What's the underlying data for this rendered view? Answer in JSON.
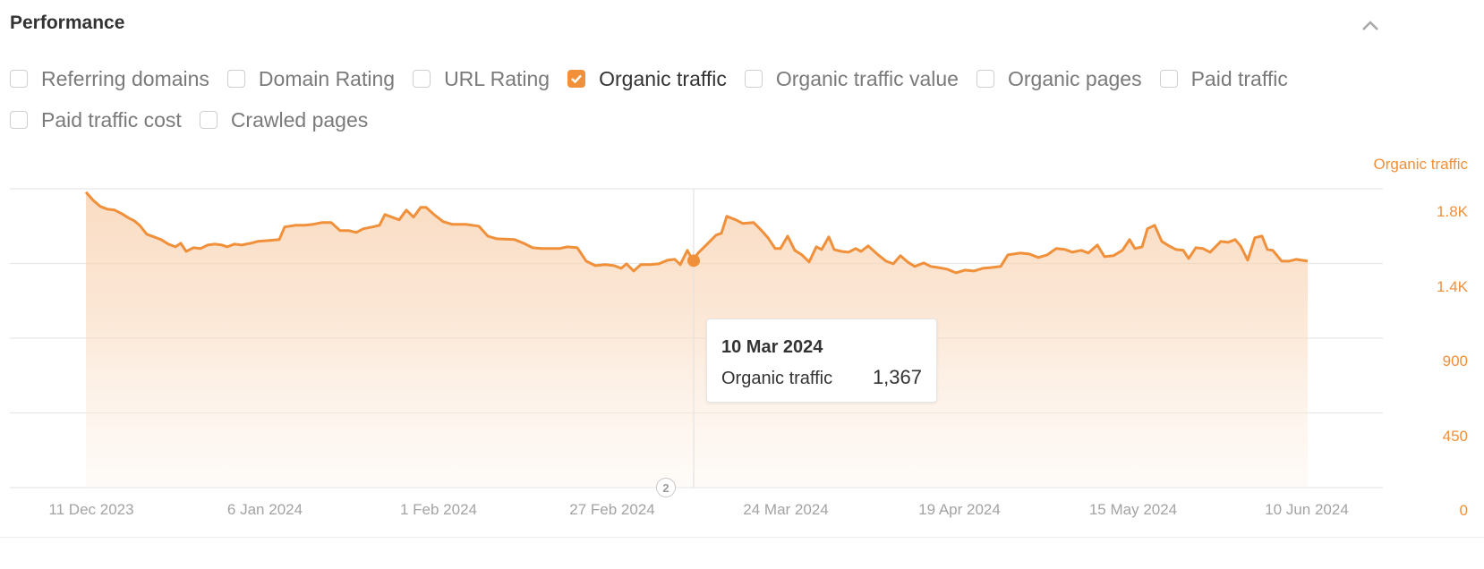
{
  "header": {
    "title": "Performance",
    "collapse_icon": "chevron-up-icon"
  },
  "filters": [
    {
      "label": "Referring domains",
      "checked": false
    },
    {
      "label": "Domain Rating",
      "checked": false
    },
    {
      "label": "URL Rating",
      "checked": false
    },
    {
      "label": "Organic traffic",
      "checked": true
    },
    {
      "label": "Organic traffic value",
      "checked": false
    },
    {
      "label": "Organic pages",
      "checked": false
    },
    {
      "label": "Paid traffic",
      "checked": false
    },
    {
      "label": "Paid traffic cost",
      "checked": false
    },
    {
      "label": "Crawled pages",
      "checked": false
    }
  ],
  "colors": {
    "accent": "#f0903a",
    "grid": "#e8e8e8",
    "axis_text": "#a3a3a3"
  },
  "tooltip": {
    "date": "10 Mar 2024",
    "series": "Organic traffic",
    "value": "1,367"
  },
  "annotation": {
    "label": "2"
  },
  "chart_data": {
    "type": "area",
    "title": "Performance",
    "series_label": "Organic traffic",
    "xlabel": "",
    "ylabel": "Organic traffic",
    "ylim": [
      0,
      1800
    ],
    "yticks": [
      {
        "label": "1.8K",
        "value": 1800
      },
      {
        "label": "1.4K",
        "value": 1350
      },
      {
        "label": "900",
        "value": 900
      },
      {
        "label": "450",
        "value": 450
      },
      {
        "label": "0",
        "value": 0
      }
    ],
    "xticks": [
      "11 Dec 2023",
      "6 Jan 2024",
      "1 Feb 2024",
      "27 Feb 2024",
      "24 Mar 2024",
      "19 Apr 2024",
      "15 May 2024",
      "10 Jun 2024"
    ],
    "grid": true,
    "legend": "none",
    "highlight": {
      "date": "10 Mar 2024",
      "value": 1367
    },
    "series": [
      {
        "name": "Organic traffic",
        "points": [
          [
            96,
            1780
          ],
          [
            104,
            1731
          ],
          [
            112,
            1694
          ],
          [
            120,
            1677
          ],
          [
            128,
            1672
          ],
          [
            136,
            1650
          ],
          [
            144,
            1623
          ],
          [
            150,
            1607
          ],
          [
            156,
            1580
          ],
          [
            164,
            1526
          ],
          [
            172,
            1510
          ],
          [
            180,
            1494
          ],
          [
            188,
            1467
          ],
          [
            196,
            1450
          ],
          [
            202,
            1472
          ],
          [
            208,
            1423
          ],
          [
            216,
            1445
          ],
          [
            224,
            1440
          ],
          [
            232,
            1461
          ],
          [
            240,
            1467
          ],
          [
            248,
            1461
          ],
          [
            254,
            1450
          ],
          [
            262,
            1467
          ],
          [
            270,
            1461
          ],
          [
            280,
            1472
          ],
          [
            288,
            1483
          ],
          [
            300,
            1488
          ],
          [
            312,
            1494
          ],
          [
            318,
            1570
          ],
          [
            330,
            1580
          ],
          [
            340,
            1580
          ],
          [
            350,
            1586
          ],
          [
            360,
            1597
          ],
          [
            370,
            1597
          ],
          [
            380,
            1548
          ],
          [
            390,
            1548
          ],
          [
            398,
            1537
          ],
          [
            406,
            1559
          ],
          [
            416,
            1570
          ],
          [
            424,
            1580
          ],
          [
            430,
            1645
          ],
          [
            446,
            1613
          ],
          [
            454,
            1672
          ],
          [
            462,
            1629
          ],
          [
            470,
            1688
          ],
          [
            476,
            1688
          ],
          [
            486,
            1640
          ],
          [
            495,
            1602
          ],
          [
            505,
            1586
          ],
          [
            520,
            1586
          ],
          [
            535,
            1575
          ],
          [
            545,
            1515
          ],
          [
            555,
            1499
          ],
          [
            575,
            1494
          ],
          [
            585,
            1472
          ],
          [
            595,
            1445
          ],
          [
            605,
            1440
          ],
          [
            625,
            1440
          ],
          [
            634,
            1450
          ],
          [
            645,
            1445
          ],
          [
            655,
            1364
          ],
          [
            665,
            1337
          ],
          [
            676,
            1343
          ],
          [
            686,
            1337
          ],
          [
            694,
            1321
          ],
          [
            700,
            1348
          ],
          [
            708,
            1305
          ],
          [
            716,
            1343
          ],
          [
            726,
            1343
          ],
          [
            736,
            1348
          ],
          [
            746,
            1370
          ],
          [
            754,
            1375
          ],
          [
            760,
            1343
          ],
          [
            768,
            1429
          ],
          [
            774,
            1367
          ],
          [
            780,
            1413
          ],
          [
            792,
            1477
          ],
          [
            800,
            1521
          ],
          [
            806,
            1532
          ],
          [
            812,
            1634
          ],
          [
            822,
            1613
          ],
          [
            830,
            1591
          ],
          [
            842,
            1597
          ],
          [
            850,
            1553
          ],
          [
            858,
            1505
          ],
          [
            866,
            1440
          ],
          [
            872,
            1440
          ],
          [
            880,
            1515
          ],
          [
            888,
            1429
          ],
          [
            896,
            1402
          ],
          [
            904,
            1359
          ],
          [
            912,
            1450
          ],
          [
            918,
            1434
          ],
          [
            926,
            1510
          ],
          [
            932,
            1434
          ],
          [
            940,
            1423
          ],
          [
            948,
            1418
          ],
          [
            956,
            1440
          ],
          [
            962,
            1423
          ],
          [
            970,
            1456
          ],
          [
            980,
            1407
          ],
          [
            990,
            1364
          ],
          [
            998,
            1348
          ],
          [
            1006,
            1397
          ],
          [
            1014,
            1359
          ],
          [
            1022,
            1332
          ],
          [
            1032,
            1353
          ],
          [
            1040,
            1332
          ],
          [
            1048,
            1326
          ],
          [
            1058,
            1316
          ],
          [
            1068,
            1294
          ],
          [
            1078,
            1310
          ],
          [
            1088,
            1305
          ],
          [
            1098,
            1321
          ],
          [
            1108,
            1326
          ],
          [
            1118,
            1332
          ],
          [
            1126,
            1402
          ],
          [
            1140,
            1413
          ],
          [
            1150,
            1407
          ],
          [
            1160,
            1386
          ],
          [
            1170,
            1402
          ],
          [
            1180,
            1440
          ],
          [
            1190,
            1434
          ],
          [
            1198,
            1418
          ],
          [
            1208,
            1429
          ],
          [
            1216,
            1413
          ],
          [
            1226,
            1461
          ],
          [
            1234,
            1391
          ],
          [
            1244,
            1397
          ],
          [
            1254,
            1429
          ],
          [
            1262,
            1494
          ],
          [
            1268,
            1440
          ],
          [
            1276,
            1450
          ],
          [
            1282,
            1559
          ],
          [
            1290,
            1580
          ],
          [
            1298,
            1483
          ],
          [
            1306,
            1456
          ],
          [
            1314,
            1434
          ],
          [
            1322,
            1429
          ],
          [
            1328,
            1380
          ],
          [
            1336,
            1445
          ],
          [
            1344,
            1440
          ],
          [
            1352,
            1418
          ],
          [
            1364,
            1483
          ],
          [
            1372,
            1477
          ],
          [
            1380,
            1494
          ],
          [
            1386,
            1456
          ],
          [
            1394,
            1370
          ],
          [
            1402,
            1505
          ],
          [
            1410,
            1515
          ],
          [
            1416,
            1434
          ],
          [
            1422,
            1429
          ],
          [
            1432,
            1364
          ],
          [
            1440,
            1364
          ],
          [
            1448,
            1375
          ],
          [
            1461,
            1364
          ]
        ]
      }
    ]
  }
}
